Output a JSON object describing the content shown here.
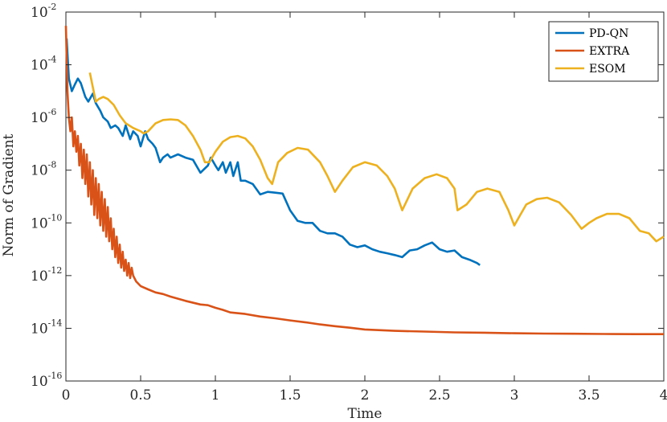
{
  "chart_data": {
    "type": "line",
    "xlabel": "Time",
    "ylabel": "Norm of Gradient",
    "xlim": [
      0,
      4
    ],
    "ylim": [
      1e-16,
      0.01
    ],
    "y_scale": "log",
    "x_ticks": [
      "0",
      "0.5",
      "1",
      "1.5",
      "2",
      "2.5",
      "3",
      "3.5",
      "4"
    ],
    "y_ticks": [
      {
        "base": "10",
        "exp": "-2"
      },
      {
        "base": "10",
        "exp": "-4"
      },
      {
        "base": "10",
        "exp": "-6"
      },
      {
        "base": "10",
        "exp": "-8"
      },
      {
        "base": "10",
        "exp": "-10"
      },
      {
        "base": "10",
        "exp": "-12"
      },
      {
        "base": "10",
        "exp": "-14"
      },
      {
        "base": "10",
        "exp": "-16"
      }
    ],
    "grid": false,
    "legend_position": "top-right",
    "series": [
      {
        "name": "PD-QN",
        "color": "#0072BD",
        "x": [
          0.005,
          0.02,
          0.04,
          0.06,
          0.08,
          0.1,
          0.13,
          0.15,
          0.18,
          0.2,
          0.23,
          0.25,
          0.28,
          0.3,
          0.33,
          0.35,
          0.38,
          0.4,
          0.43,
          0.45,
          0.48,
          0.5,
          0.53,
          0.55,
          0.58,
          0.6,
          0.63,
          0.65,
          0.68,
          0.7,
          0.75,
          0.8,
          0.85,
          0.9,
          0.95,
          0.97,
          1.0,
          1.02,
          1.05,
          1.07,
          1.1,
          1.12,
          1.15,
          1.17,
          1.2,
          1.25,
          1.3,
          1.35,
          1.4,
          1.45,
          1.5,
          1.55,
          1.6,
          1.65,
          1.7,
          1.75,
          1.8,
          1.85,
          1.9,
          1.95,
          2.0,
          2.05,
          2.1,
          2.15,
          2.2,
          2.25,
          2.3,
          2.35,
          2.4,
          2.45,
          2.5,
          2.55,
          2.6,
          2.65,
          2.7,
          2.75,
          2.77
        ],
        "y": [
          0.001,
          3e-05,
          1e-05,
          1.8e-05,
          3e-05,
          2e-05,
          6e-06,
          4e-06,
          8e-06,
          3.5e-06,
          1.8e-06,
          1e-06,
          7e-07,
          4e-07,
          5e-07,
          4e-07,
          2e-07,
          5e-07,
          1.5e-07,
          3e-07,
          2e-07,
          8e-08,
          3e-07,
          1.5e-07,
          1e-07,
          7e-08,
          2e-08,
          3e-08,
          4e-08,
          3e-08,
          4e-08,
          3e-08,
          2.5e-08,
          8e-09,
          1.5e-08,
          3e-08,
          1.5e-08,
          1e-08,
          2e-08,
          8e-09,
          2e-08,
          6e-09,
          2e-08,
          4e-09,
          4e-09,
          3e-09,
          1.2e-09,
          1.5e-09,
          1.4e-09,
          1.3e-09,
          3e-10,
          1.2e-10,
          1e-10,
          1e-10,
          5e-11,
          4e-11,
          4e-11,
          3e-11,
          1.5e-11,
          1.2e-11,
          1.4e-11,
          1e-11,
          8e-12,
          7e-12,
          6e-12,
          5e-12,
          9e-12,
          1e-11,
          1.4e-11,
          1.8e-11,
          1e-11,
          8e-12,
          9e-12,
          5e-12,
          4e-12,
          3e-12,
          2.5e-12
        ]
      },
      {
        "name": "EXTRA",
        "color": "#D95319",
        "x": [
          0.0,
          0.01,
          0.02,
          0.03,
          0.04,
          0.05,
          0.06,
          0.07,
          0.08,
          0.09,
          0.1,
          0.11,
          0.12,
          0.13,
          0.14,
          0.15,
          0.16,
          0.17,
          0.18,
          0.19,
          0.2,
          0.21,
          0.22,
          0.23,
          0.24,
          0.25,
          0.26,
          0.27,
          0.28,
          0.29,
          0.3,
          0.31,
          0.32,
          0.33,
          0.34,
          0.35,
          0.36,
          0.37,
          0.38,
          0.39,
          0.4,
          0.41,
          0.42,
          0.43,
          0.44,
          0.45,
          0.47,
          0.5,
          0.55,
          0.6,
          0.65,
          0.7,
          0.8,
          0.9,
          0.95,
          1.0,
          1.05,
          1.1,
          1.2,
          1.3,
          1.4,
          1.5,
          1.6,
          1.7,
          1.8,
          1.9,
          2.0,
          2.2,
          2.4,
          2.6,
          2.8,
          3.0,
          3.2,
          3.4,
          3.6,
          3.8,
          4.0
        ],
        "y": [
          0.003,
          1e-05,
          1e-06,
          3e-07,
          1e-06,
          8e-08,
          3e-07,
          5e-08,
          2e-07,
          1.5e-08,
          1e-07,
          5e-09,
          6e-08,
          3e-09,
          4e-08,
          1e-09,
          2e-08,
          5e-10,
          1e-08,
          2e-10,
          5e-09,
          1.5e-10,
          3e-09,
          8e-11,
          1.5e-09,
          5e-11,
          8e-10,
          3e-11,
          4e-10,
          2e-11,
          1.5e-10,
          1e-11,
          6e-11,
          5e-12,
          3e-11,
          3e-12,
          1.5e-11,
          2e-12,
          8e-12,
          1.5e-12,
          4e-12,
          1e-12,
          3e-12,
          8e-13,
          2e-12,
          1e-12,
          6e-13,
          4e-13,
          3e-13,
          2.3e-13,
          2e-13,
          1.6e-13,
          1.1e-13,
          8e-14,
          7.5e-14,
          6e-14,
          5e-14,
          4e-14,
          3.5e-14,
          2.8e-14,
          2.4e-14,
          2e-14,
          1.7e-14,
          1.4e-14,
          1.2e-14,
          1.05e-14,
          9e-15,
          8e-15,
          7.5e-15,
          7e-15,
          6.8e-15,
          6.5e-15,
          6.3e-15,
          6.2e-15,
          6.1e-15,
          6e-15,
          6e-15
        ]
      },
      {
        "name": "ESOM",
        "color": "#EDB120",
        "x": [
          0.16,
          0.2,
          0.22,
          0.25,
          0.28,
          0.32,
          0.36,
          0.4,
          0.45,
          0.5,
          0.52,
          0.55,
          0.6,
          0.65,
          0.7,
          0.75,
          0.8,
          0.85,
          0.9,
          0.93,
          0.96,
          1.0,
          1.05,
          1.1,
          1.15,
          1.2,
          1.25,
          1.3,
          1.35,
          1.38,
          1.42,
          1.48,
          1.55,
          1.62,
          1.7,
          1.75,
          1.8,
          1.85,
          1.92,
          2.0,
          2.08,
          2.15,
          2.2,
          2.25,
          2.32,
          2.4,
          2.48,
          2.55,
          2.6,
          2.62,
          2.68,
          2.75,
          2.82,
          2.9,
          2.96,
          3.0,
          3.04,
          3.08,
          3.15,
          3.22,
          3.3,
          3.38,
          3.45,
          3.5,
          3.55,
          3.62,
          3.7,
          3.77,
          3.84,
          3.9,
          3.95,
          4.0
        ],
        "y": [
          5e-05,
          4e-06,
          5e-06,
          6e-06,
          5e-06,
          3e-06,
          1.2e-06,
          6e-07,
          4e-07,
          3e-07,
          2.5e-07,
          3e-07,
          6e-07,
          8e-07,
          8.5e-07,
          8e-07,
          5e-07,
          2e-07,
          6e-08,
          2e-08,
          2e-08,
          5e-08,
          1.2e-07,
          1.8e-07,
          2e-07,
          1.6e-07,
          8e-08,
          2.5e-08,
          5e-09,
          3e-09,
          2e-08,
          4.5e-08,
          7e-08,
          6e-08,
          2e-08,
          6e-09,
          1.5e-09,
          4e-09,
          1.3e-08,
          2e-08,
          1.5e-08,
          6e-09,
          2e-09,
          3e-10,
          2e-09,
          5e-09,
          7e-09,
          5e-09,
          2e-09,
          3e-10,
          5e-10,
          1.5e-09,
          2e-09,
          1.5e-09,
          3e-10,
          8e-11,
          2e-10,
          5e-10,
          8e-10,
          9e-10,
          6e-10,
          2e-10,
          6e-11,
          1e-10,
          1.5e-10,
          2.2e-10,
          2.2e-10,
          1.5e-10,
          5e-11,
          4e-11,
          2e-11,
          3e-11
        ]
      }
    ]
  }
}
